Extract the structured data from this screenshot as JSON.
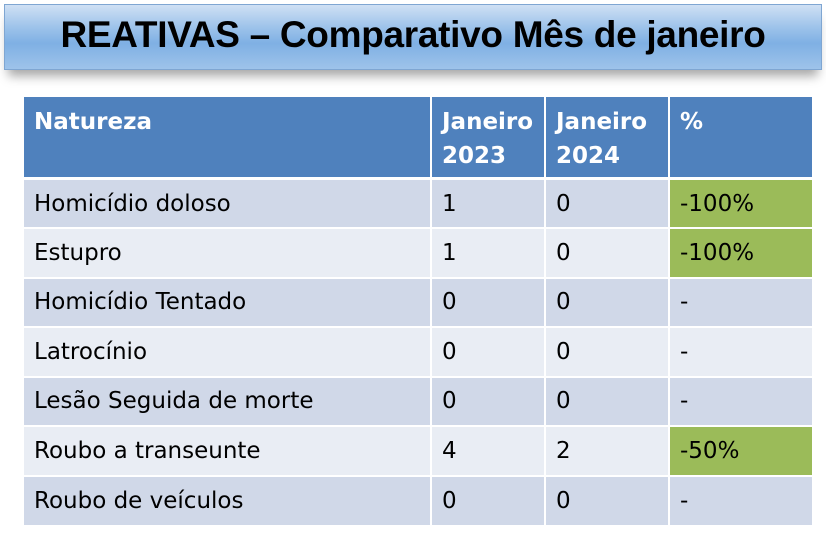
{
  "title": "REATIVAS – Comparativo Mês de janeiro",
  "colors": {
    "header_bg": "#4f81bd",
    "row_bg": "#d0d8e8",
    "row_alt_bg": "#e9edf4",
    "highlight": "#9bbb59"
  },
  "table": {
    "headers": [
      "Natureza",
      "Janeiro 2023",
      "Janeiro 2024",
      "%"
    ],
    "rows": [
      {
        "natureza": "Homicídio doloso",
        "jan2023": "1",
        "jan2024": "0",
        "pct": "-100%",
        "highlight": true
      },
      {
        "natureza": "Estupro",
        "jan2023": "1",
        "jan2024": "0",
        "pct": "-100%",
        "highlight": true
      },
      {
        "natureza": "Homicídio Tentado",
        "jan2023": "0",
        "jan2024": "0",
        "pct": "-",
        "highlight": false
      },
      {
        "natureza": "Latrocínio",
        "jan2023": "0",
        "jan2024": "0",
        "pct": "-",
        "highlight": false
      },
      {
        "natureza": "Lesão Seguida de morte",
        "jan2023": "0",
        "jan2024": "0",
        "pct": "-",
        "highlight": false
      },
      {
        "natureza": "Roubo a transeunte",
        "jan2023": "4",
        "jan2024": "2",
        "pct": "-50%",
        "highlight": true
      },
      {
        "natureza": "Roubo de veículos",
        "jan2023": "0",
        "jan2024": "0",
        "pct": "-",
        "highlight": false
      }
    ]
  }
}
